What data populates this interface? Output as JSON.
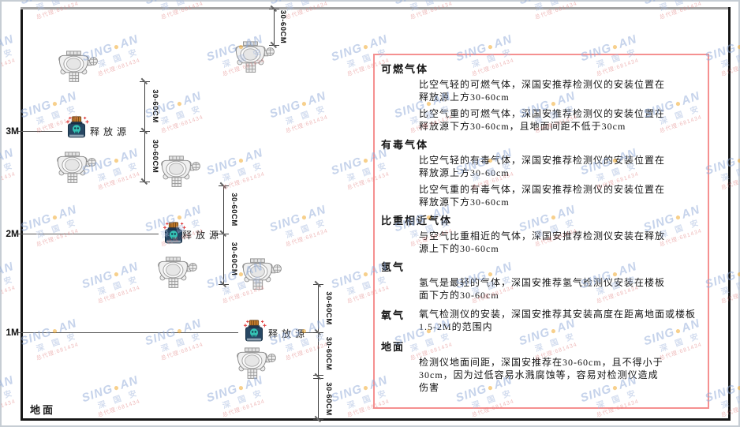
{
  "diagram": {
    "height_labels": [
      "3M",
      "2M",
      "1M"
    ],
    "ground_label": "地面",
    "release_label": "释放源",
    "dim_label": "30-60CM"
  },
  "panel": {
    "border_color": "#f59090",
    "sections": [
      {
        "heading": "可燃气体",
        "paras": [
          "比空气轻的可燃气体，深国安推荐检测仪的安装位置在释放源上方30-60cm",
          "比空气重的可燃气体，深国安推荐检测仪的安装位置在释放源下方30-60cm，且地面间距不低于30cm"
        ]
      },
      {
        "heading": "有毒气体",
        "paras": [
          "比空气轻的有毒气体，深国安推荐检测仪的安装位置在释放源上方30-60cm",
          "比空气重的有毒气体，深国安推荐检测仪的安装位置在释放源下方30-60cm"
        ]
      },
      {
        "heading": "比重相近气体",
        "paras": [
          "与空气比重相近的气体，深国安推荐检测仪安装在释放源上下的30-60cm"
        ]
      },
      {
        "heading": "氢气",
        "paras": [
          "氢气是最轻的气体，深国安推荐氢气检测仪安装在楼板面下方的30-60cm"
        ]
      },
      {
        "heading": "氧气",
        "inline": true,
        "paras": [
          "氧气检测仪的安装，深国安推荐其安装高度在距离地面或楼板1.5-2M的范围内"
        ]
      },
      {
        "heading": "地面",
        "paras": [
          "检测仪地面间距，深国安推荐在30-60cm，且不得小于30cm，因为过低容易水溅腐蚀等，容易对检测仪造成伤害"
        ]
      }
    ]
  },
  "watermark": {
    "brand_prefix": "SING",
    "dot": "●",
    "brand_suffix": "AN",
    "subtext": "深 国 安",
    "agent_text": "总代理:681434",
    "brand_color": "#8ea9d8",
    "dot_color": "#f0a21c",
    "agent_color": "#e07a7a"
  },
  "colors": {
    "source_body": "#274763",
    "source_cap": "#c07a2c",
    "source_skull": "#35c3b4",
    "detector_body": "#f0f0f0"
  }
}
